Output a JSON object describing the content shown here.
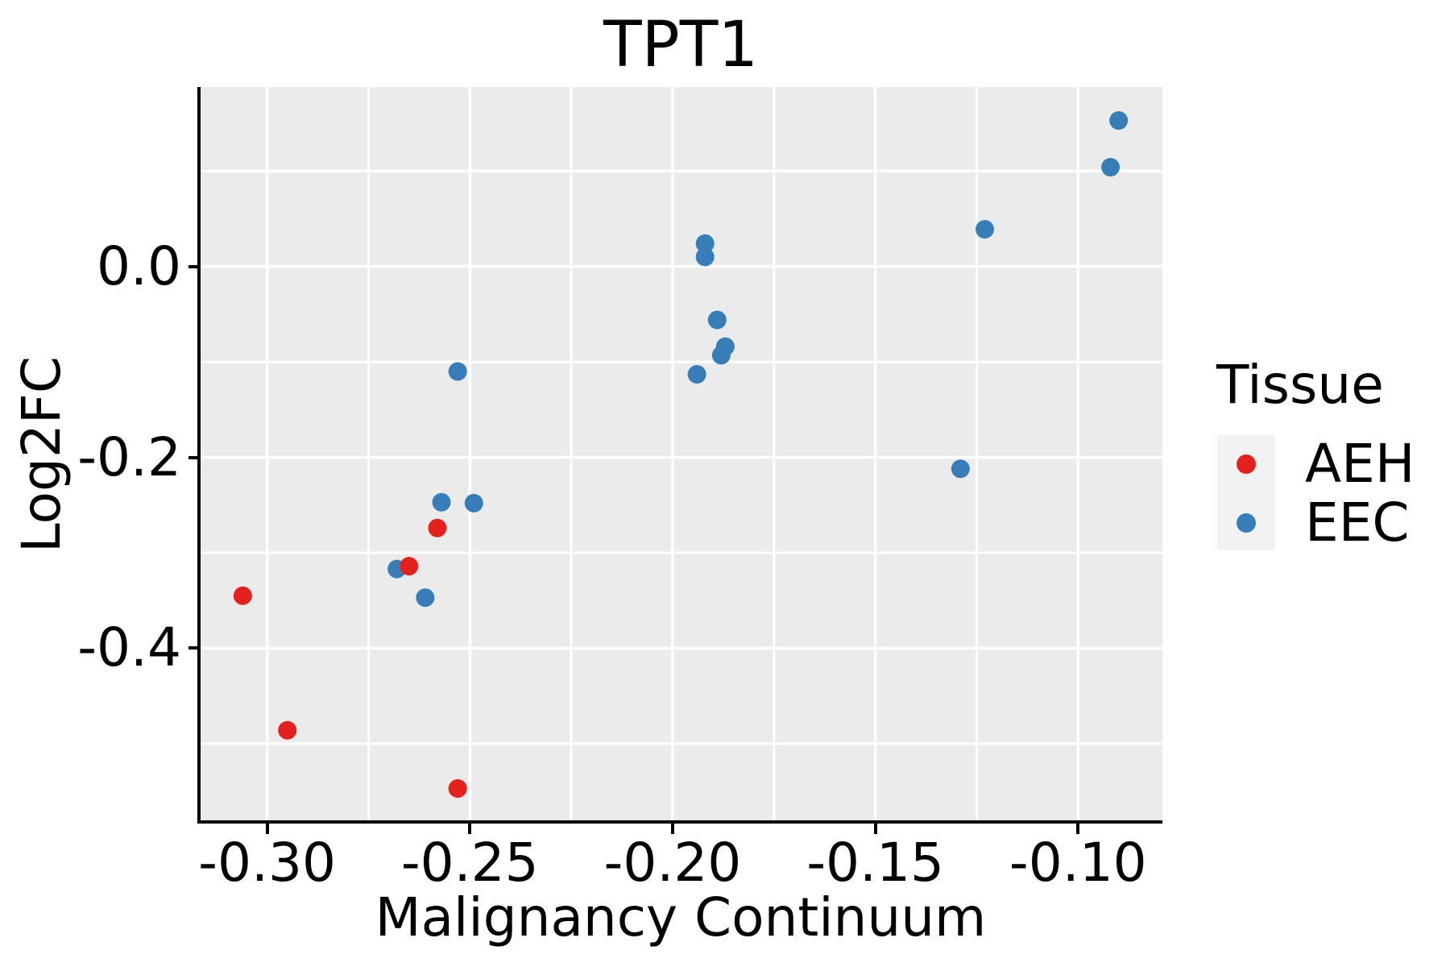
{
  "title": "TPT1",
  "chart_data": {
    "type": "scatter",
    "title": "TPT1",
    "xlabel": "Malignancy Continuum",
    "ylabel": "Log2FC",
    "xlim": [
      -0.3168,
      -0.0792
    ],
    "ylim": [
      -0.582,
      0.188
    ],
    "grid": true,
    "panel_background": "#EBEBEB",
    "gridline_color": "#FFFFFF",
    "x_ticks": {
      "values": [
        -0.3,
        -0.25,
        -0.2,
        -0.15,
        -0.1
      ],
      "labels": [
        "-0.30",
        "-0.25",
        "-0.20",
        "-0.15",
        "-0.10"
      ]
    },
    "x_minor_ticks": [
      -0.275,
      -0.225,
      -0.175,
      -0.125
    ],
    "y_ticks": {
      "values": [
        0.0,
        -0.2,
        -0.4
      ],
      "labels": [
        "0.0",
        "-0.2",
        "-0.4"
      ]
    },
    "y_minor_ticks": [
      0.1,
      -0.1,
      -0.3,
      -0.5
    ],
    "legend_position": "right",
    "series": [
      {
        "name": "AEH",
        "color": "#E4211C",
        "points": [
          [
            -0.306,
            -0.345
          ],
          [
            -0.295,
            -0.486
          ],
          [
            -0.265,
            -0.314
          ],
          [
            -0.258,
            -0.274
          ],
          [
            -0.253,
            -0.547
          ]
        ]
      },
      {
        "name": "EEC",
        "color": "#377EB8",
        "points": [
          [
            -0.268,
            -0.317
          ],
          [
            -0.261,
            -0.347
          ],
          [
            -0.257,
            -0.247
          ],
          [
            -0.253,
            -0.11
          ],
          [
            -0.249,
            -0.248
          ],
          [
            -0.194,
            -0.113
          ],
          [
            -0.192,
            0.024
          ],
          [
            -0.192,
            0.01
          ],
          [
            -0.189,
            -0.056
          ],
          [
            -0.188,
            -0.093
          ],
          [
            -0.187,
            -0.084
          ],
          [
            -0.129,
            -0.212
          ],
          [
            -0.123,
            0.039
          ],
          [
            -0.092,
            0.104
          ],
          [
            -0.09,
            0.153
          ]
        ]
      }
    ]
  },
  "legend": {
    "title": "Tissue",
    "items": [
      {
        "label": "AEH",
        "color": "#E4211C"
      },
      {
        "label": "EEC",
        "color": "#377EB8"
      }
    ]
  }
}
